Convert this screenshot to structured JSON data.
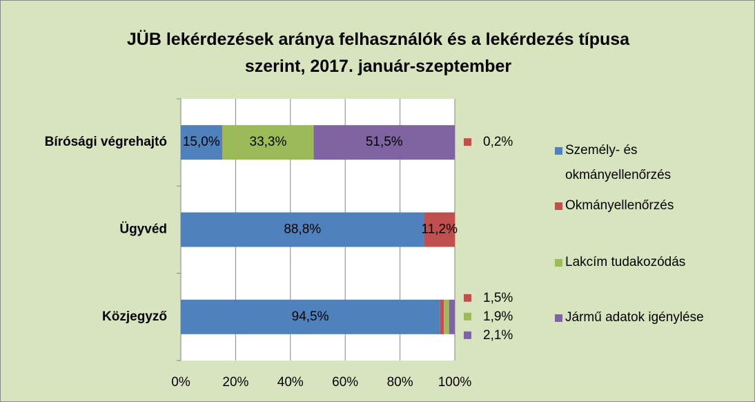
{
  "chart_data": {
    "type": "stacked_barh",
    "title": "JÜB lekérdezések aránya felhasználók és a lekérdezés típusa szerint, 2017. január-szeptember",
    "categories": [
      "Bírósági végrehajtó",
      "Ügyvéd",
      "Közjegyző"
    ],
    "series": [
      {
        "name": "Személy- és okmányellenőrzés",
        "color": "#4f81bd",
        "values": [
          15.0,
          88.8,
          94.5
        ],
        "value_labels": [
          "15,0%",
          "88,8%",
          "94,5%"
        ]
      },
      {
        "name": "Okmányellenőrzés",
        "color": "#c0504d",
        "values": [
          0.2,
          11.2,
          1.5
        ],
        "value_labels": [
          "0,2%",
          "11,2%",
          "1,5%"
        ]
      },
      {
        "name": "Lakcím tudakozódás",
        "color": "#9bbb59",
        "values": [
          33.3,
          null,
          1.9
        ],
        "value_labels": [
          "33,3%",
          null,
          "1,9%"
        ]
      },
      {
        "name": "Jármű adatok igénylése",
        "color": "#8064a2",
        "values": [
          51.5,
          null,
          2.1
        ],
        "value_labels": [
          "51,5%",
          null,
          "2,1%"
        ]
      }
    ],
    "xlim": [
      0,
      100
    ],
    "xticks": [
      {
        "value": 0,
        "label": "0%"
      },
      {
        "value": 20,
        "label": "20%"
      },
      {
        "value": 40,
        "label": "40%"
      },
      {
        "value": 60,
        "label": "60%"
      },
      {
        "value": 80,
        "label": "80%"
      },
      {
        "value": 100,
        "label": "100%"
      }
    ],
    "grid": true,
    "legend": "right"
  }
}
